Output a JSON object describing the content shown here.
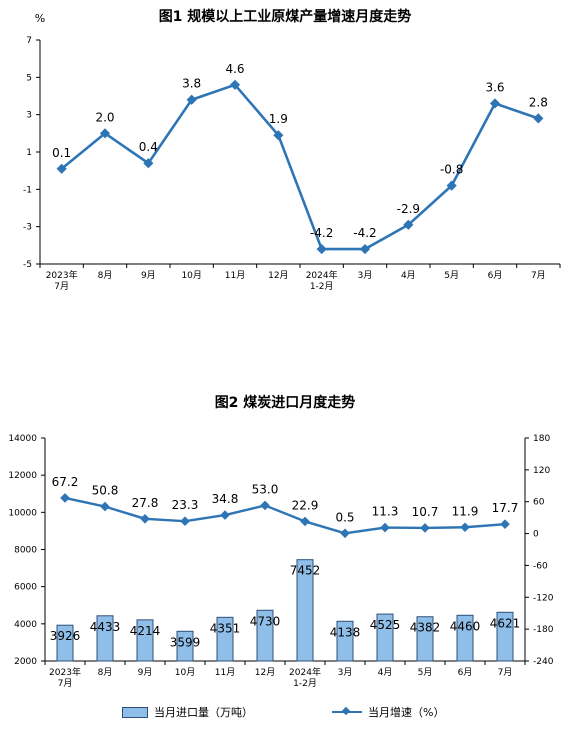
{
  "chart_data": [
    {
      "type": "line",
      "title": "图1  规模以上工业原煤产量增速月度走势",
      "ylabel": "%",
      "ylim": [
        -5,
        7
      ],
      "yticks": [
        7,
        5,
        3,
        1,
        -1,
        -3,
        -5
      ],
      "categories": [
        [
          "2023年",
          "7月"
        ],
        [
          "8月"
        ],
        [
          "9月"
        ],
        [
          "10月"
        ],
        [
          "11月"
        ],
        [
          "12月"
        ],
        [
          "2024年",
          "1-2月"
        ],
        [
          "3月"
        ],
        [
          "4月"
        ],
        [
          "5月"
        ],
        [
          "6月"
        ],
        [
          "7月"
        ]
      ],
      "values": [
        0.1,
        2.0,
        0.4,
        3.8,
        4.6,
        1.9,
        -4.2,
        -4.2,
        -2.9,
        -0.8,
        3.6,
        2.8
      ],
      "labels": [
        "0.1",
        "2.0",
        "0.4",
        "3.8",
        "4.6",
        "1.9",
        "-4.2",
        "-4.2",
        "-2.9",
        "-0.8",
        "3.6",
        "2.8"
      ],
      "color": "#2e75b6",
      "grid": false
    },
    {
      "type": "bar+line",
      "title": "图2  煤炭进口月度走势",
      "categories": [
        [
          "2023年",
          "7月"
        ],
        [
          "8月"
        ],
        [
          "9月"
        ],
        [
          "10月"
        ],
        [
          "11月"
        ],
        [
          "12月"
        ],
        [
          "2024年",
          "1-2月"
        ],
        [
          "3月"
        ],
        [
          "4月"
        ],
        [
          "5月"
        ],
        [
          "6月"
        ],
        [
          "7月"
        ]
      ],
      "ylim_left": [
        2000,
        14000
      ],
      "yticks_left": [
        "14000",
        "12000",
        "10000",
        "8000",
        "6000",
        "4000",
        "2000"
      ],
      "ylim_right": [
        -240,
        180
      ],
      "yticks_right": [
        "180",
        "120",
        "60",
        "0",
        "-60",
        "-120",
        "-180",
        "-240"
      ],
      "series": [
        {
          "name": "当月进口量（万吨）",
          "kind": "bar",
          "axis": "left",
          "values": [
            3926,
            4433,
            4214,
            3599,
            4351,
            4730,
            7452,
            4138,
            4525,
            4382,
            4460,
            4621
          ],
          "labels": [
            "3926",
            "4433",
            "4214",
            "3599",
            "4351",
            "4730",
            "7452",
            "4138",
            "4525",
            "4382",
            "4460",
            "4621"
          ],
          "color": "#8fbfe8"
        },
        {
          "name": "当月增速（%）",
          "kind": "line",
          "axis": "right",
          "values": [
            67.2,
            50.8,
            27.8,
            23.3,
            34.8,
            53.0,
            22.9,
            0.5,
            11.3,
            10.7,
            11.9,
            17.7
          ],
          "labels": [
            "67.2",
            "50.8",
            "27.8",
            "23.3",
            "34.8",
            "53.0",
            "22.9",
            "0.5",
            "11.3",
            "10.7",
            "11.9",
            "17.7"
          ],
          "color": "#2e75b6"
        }
      ],
      "legend": "bottom",
      "grid": false
    }
  ]
}
